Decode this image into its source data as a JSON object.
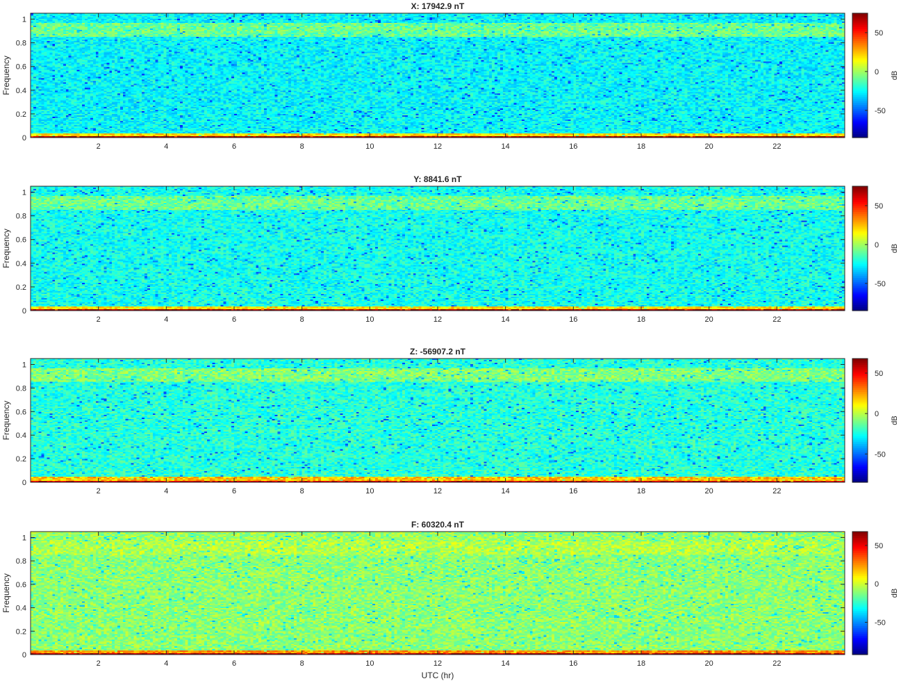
{
  "chart_data": [
    {
      "type": "heatmap",
      "title": "X: 17942.9 nT",
      "xlabel": "",
      "ylabel": "Frequency",
      "xlim": [
        0,
        24
      ],
      "ylim": [
        0,
        1.05
      ],
      "x_ticks": [
        2,
        4,
        6,
        8,
        10,
        12,
        14,
        16,
        18,
        20,
        22
      ],
      "y_ticks": [
        0,
        0.2,
        0.4,
        0.6,
        0.8,
        1
      ],
      "colorbar": {
        "label": "dB",
        "range": [
          -85,
          75
        ],
        "ticks": [
          -50,
          0,
          50
        ]
      },
      "colormap": "jet",
      "bands": [
        {
          "freq_from": 0.0,
          "freq_to": 0.015,
          "level_db": 70
        },
        {
          "freq_from": 0.015,
          "freq_to": 0.04,
          "level_db": 20
        },
        {
          "freq_from": 0.04,
          "freq_to": 0.85,
          "level_db": -25
        },
        {
          "freq_from": 0.85,
          "freq_to": 0.97,
          "level_db": -8
        },
        {
          "freq_from": 0.97,
          "freq_to": 1.05,
          "level_db": -25
        }
      ]
    },
    {
      "type": "heatmap",
      "title": "Y: 8841.6 nT",
      "xlabel": "",
      "ylabel": "Frequency",
      "xlim": [
        0,
        24
      ],
      "ylim": [
        0,
        1.05
      ],
      "x_ticks": [
        2,
        4,
        6,
        8,
        10,
        12,
        14,
        16,
        18,
        20,
        22
      ],
      "y_ticks": [
        0,
        0.2,
        0.4,
        0.6,
        0.8,
        1
      ],
      "colorbar": {
        "label": "dB",
        "range": [
          -85,
          75
        ],
        "ticks": [
          -50,
          0,
          50
        ]
      },
      "colormap": "jet",
      "bands": [
        {
          "freq_from": 0.0,
          "freq_to": 0.015,
          "level_db": 70
        },
        {
          "freq_from": 0.015,
          "freq_to": 0.04,
          "level_db": 20
        },
        {
          "freq_from": 0.04,
          "freq_to": 0.85,
          "level_db": -22
        },
        {
          "freq_from": 0.85,
          "freq_to": 0.97,
          "level_db": -8
        },
        {
          "freq_from": 0.97,
          "freq_to": 1.05,
          "level_db": -22
        }
      ]
    },
    {
      "type": "heatmap",
      "title": "Z: -56907.2 nT",
      "xlabel": "",
      "ylabel": "Frequency",
      "xlim": [
        0,
        24
      ],
      "ylim": [
        0,
        1.05
      ],
      "x_ticks": [
        2,
        4,
        6,
        8,
        10,
        12,
        14,
        16,
        18,
        20,
        22
      ],
      "y_ticks": [
        0,
        0.2,
        0.4,
        0.6,
        0.8,
        1
      ],
      "colorbar": {
        "label": "dB",
        "range": [
          -85,
          68
        ],
        "ticks": [
          -50,
          0,
          50
        ]
      },
      "colormap": "jet",
      "bands": [
        {
          "freq_from": 0.0,
          "freq_to": 0.015,
          "level_db": 55
        },
        {
          "freq_from": 0.015,
          "freq_to": 0.05,
          "level_db": 20
        },
        {
          "freq_from": 0.05,
          "freq_to": 0.85,
          "level_db": -22
        },
        {
          "freq_from": 0.85,
          "freq_to": 0.97,
          "level_db": -8
        },
        {
          "freq_from": 0.97,
          "freq_to": 1.05,
          "level_db": -22
        }
      ]
    },
    {
      "type": "heatmap",
      "title": "F: 60320.4 nT",
      "xlabel": "UTC (hr)",
      "ylabel": "Frequency",
      "xlim": [
        0,
        24
      ],
      "ylim": [
        0,
        1.05
      ],
      "x_ticks": [
        2,
        4,
        6,
        8,
        10,
        12,
        14,
        16,
        18,
        20,
        22
      ],
      "y_ticks": [
        0,
        0.2,
        0.4,
        0.6,
        0.8,
        1
      ],
      "colorbar": {
        "label": "dB",
        "range": [
          -92,
          68
        ],
        "ticks": [
          -50,
          0,
          50
        ]
      },
      "colormap": "jet",
      "bands": [
        {
          "freq_from": 0.0,
          "freq_to": 0.015,
          "level_db": 62
        },
        {
          "freq_from": 0.015,
          "freq_to": 0.04,
          "level_db": 25
        },
        {
          "freq_from": 0.04,
          "freq_to": 0.85,
          "level_db": -10
        },
        {
          "freq_from": 0.85,
          "freq_to": 0.97,
          "level_db": -4
        },
        {
          "freq_from": 0.97,
          "freq_to": 1.05,
          "level_db": -8
        }
      ]
    }
  ]
}
